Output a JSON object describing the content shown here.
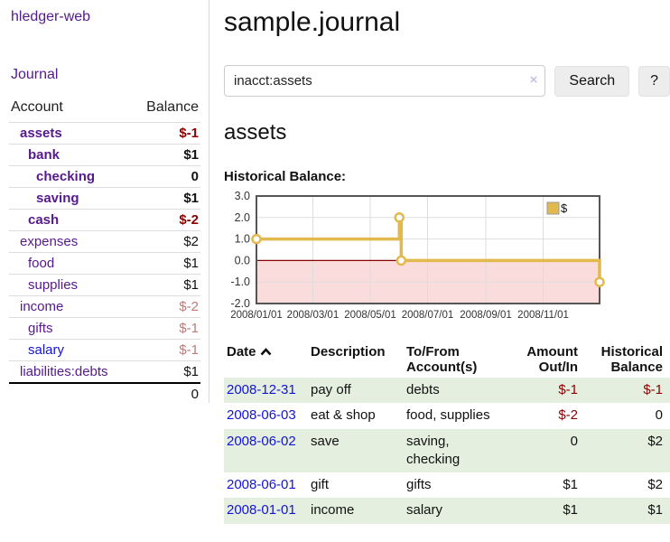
{
  "colors": {
    "link_purple": "#551a8b",
    "link_blue": "#1414d4",
    "negative_strong": "#8b0000",
    "negative_soft": "#bd7b7b",
    "row_green": "#e4efdf",
    "chart_gold": "#e2b94c",
    "chart_negative_fill": "#fbdcdc",
    "chart_zero_line": "#8b0000",
    "chart_grid": "#dddddd",
    "chart_border": "#555555"
  },
  "app": {
    "title": "hledger-web"
  },
  "sidebar": {
    "journal_link": "Journal",
    "accounts": {
      "header_account": "Account",
      "header_balance": "Balance",
      "rows": [
        {
          "name": "assets",
          "balance": "$-1",
          "indent": 0,
          "bold": true,
          "balance_bold": true,
          "balance_color": "negative"
        },
        {
          "name": "bank",
          "balance": "$1",
          "indent": 1,
          "bold": true,
          "balance_bold": true
        },
        {
          "name": "checking",
          "balance": "0",
          "indent": 2,
          "bold": true,
          "balance_bold": true
        },
        {
          "name": "saving",
          "balance": "$1",
          "indent": 2,
          "bold": true,
          "balance_bold": true
        },
        {
          "name": "cash",
          "balance": "$-2",
          "indent": 1,
          "bold": true,
          "balance_bold": true,
          "balance_color": "negative"
        },
        {
          "name": "expenses",
          "balance": "$2",
          "indent": 0
        },
        {
          "name": "food",
          "balance": "$1",
          "indent": 1
        },
        {
          "name": "supplies",
          "balance": "$1",
          "indent": 1
        },
        {
          "name": "income",
          "balance": "$-2",
          "indent": 0,
          "balance_color": "negative-soft"
        },
        {
          "name": "gifts",
          "balance": "$-1",
          "indent": 1,
          "balance_color": "negative-soft"
        },
        {
          "name": "salary",
          "balance": "$-1",
          "indent": 1,
          "link": "blue",
          "balance_color": "negative-soft"
        },
        {
          "name": "liabilities:debts",
          "balance": "$1",
          "indent": 0
        }
      ],
      "total": "0"
    }
  },
  "main": {
    "title": "sample.journal",
    "search": {
      "value": "inacct:assets",
      "clear_icon": "×",
      "search_button": "Search",
      "help_button": "?"
    },
    "account_heading": "assets",
    "chart_heading": "Historical Balance:"
  },
  "chart_data": {
    "type": "step-line",
    "title": "Historical Balance",
    "x_range": [
      "2008-01-01",
      "2008-12-31"
    ],
    "ylim": [
      -2,
      3
    ],
    "y_ticks": [
      "3.0",
      "2.0",
      "1.0",
      "0.0",
      "-1.0",
      "-2.0"
    ],
    "x_ticks": [
      "2008/01/01",
      "2008/03/01",
      "2008/05/01",
      "2008/07/01",
      "2008/09/01",
      "2008/11/01"
    ],
    "grid": true,
    "legend_position": "top-right",
    "negative_region_shaded": true,
    "legend": [
      {
        "label": "$"
      }
    ],
    "series": [
      {
        "name": "$",
        "points": [
          [
            "2008-01-01",
            1
          ],
          [
            "2008-06-01",
            2
          ],
          [
            "2008-06-03",
            0
          ],
          [
            "2008-12-31",
            -1
          ]
        ]
      }
    ]
  },
  "register": {
    "headers": {
      "date": "Date",
      "description": "Description",
      "accounts": "To/From Account(s)",
      "amount": "Amount Out/In",
      "balance": "Historical Balance"
    },
    "rows": [
      {
        "date": "2008-12-31",
        "description": "pay off",
        "accounts": "debts",
        "amount": "$-1",
        "amount_negative": true,
        "balance": "$-1",
        "balance_negative": true
      },
      {
        "date": "2008-06-03",
        "description": "eat & shop",
        "accounts": "food, supplies",
        "amount": "$-2",
        "amount_negative": true,
        "balance": "0"
      },
      {
        "date": "2008-06-02",
        "description": "save",
        "accounts": "saving, checking",
        "amount": "0",
        "balance": "$2"
      },
      {
        "date": "2008-06-01",
        "description": "gift",
        "accounts": "gifts",
        "amount": "$1",
        "balance": "$2"
      },
      {
        "date": "2008-01-01",
        "description": "income",
        "accounts": "salary",
        "amount": "$1",
        "balance": "$1"
      }
    ]
  }
}
